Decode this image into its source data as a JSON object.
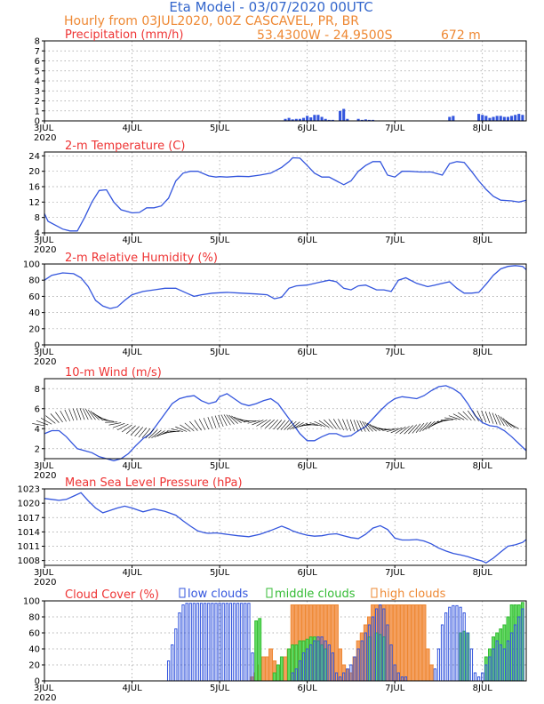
{
  "header": {
    "title": "Eta Model - 03/07/2020 00UTC",
    "subtitle": "Hourly from 03JUL2020, 00Z  CASCAVEL, PR, BR",
    "coords": "53.4300W - 24.9500S",
    "elevation": "672  m"
  },
  "colors": {
    "blue": "#3355dd",
    "red": "#ee3333",
    "orange": "#ee8833",
    "green": "#33bb33",
    "title_blue": "#3366cc",
    "high_fill": "#f4a060",
    "mid_fill": "#66dd66",
    "grid": "#999999"
  },
  "x_axis": {
    "ticks": [
      "3JUL",
      "4JUL",
      "5JUL",
      "6JUL",
      "7JUL",
      "8JUL"
    ],
    "year": "2020",
    "hours_total": 132
  },
  "chart_data": [
    {
      "type": "bar",
      "name": "precipitation",
      "title": "Precipitation (mm/h)",
      "yticks": [
        "0",
        "1",
        "2",
        "3",
        "4",
        "5",
        "6",
        "7",
        "8"
      ],
      "ylim": [
        0,
        8
      ],
      "x_hours": [
        66,
        67,
        68,
        69,
        70,
        71,
        72,
        73,
        74,
        75,
        76,
        77,
        78,
        79,
        81,
        82,
        83,
        86,
        87,
        88,
        89,
        90,
        111,
        112,
        119,
        120,
        121,
        122,
        123,
        124,
        125,
        126,
        127,
        128,
        129,
        130,
        131
      ],
      "values": [
        0.2,
        0.3,
        0.15,
        0.2,
        0.2,
        0.3,
        0.5,
        0.35,
        0.6,
        0.6,
        0.4,
        0.2,
        0.1,
        0.1,
        1.0,
        1.2,
        0.2,
        0.2,
        0.1,
        0.15,
        0.1,
        0.1,
        0.4,
        0.5,
        0.7,
        0.6,
        0.5,
        0.3,
        0.4,
        0.5,
        0.5,
        0.4,
        0.4,
        0.5,
        0.6,
        0.7,
        0.6
      ]
    },
    {
      "type": "line",
      "name": "temperature",
      "title": "2-m Temperature (C)",
      "yticks": [
        "4",
        "8",
        "12",
        "16",
        "20",
        "24"
      ],
      "ylim": [
        4,
        25
      ],
      "x": [
        0,
        1,
        3,
        5,
        7,
        9,
        11,
        13,
        15,
        17,
        19,
        21,
        23,
        24,
        26,
        28,
        30,
        32,
        34,
        36,
        38,
        40,
        42,
        45,
        47,
        48,
        50,
        53,
        56,
        59,
        62,
        65,
        67,
        68,
        70,
        72,
        74,
        76,
        78,
        80,
        82,
        84,
        86,
        88,
        90,
        92,
        94,
        96,
        98,
        100,
        103,
        106,
        109,
        111,
        113,
        115,
        117,
        119,
        121,
        123,
        125,
        128,
        130,
        132
      ],
      "y": [
        9,
        7,
        6,
        5,
        4.5,
        4.5,
        8,
        12,
        15,
        15.2,
        12,
        10,
        9.5,
        9.2,
        9.3,
        10.5,
        10.5,
        11,
        13,
        17.5,
        19.5,
        20,
        20,
        18.8,
        18.5,
        18.6,
        18.5,
        18.7,
        18.6,
        19,
        19.5,
        21,
        22.5,
        23.5,
        23.4,
        21.5,
        19.5,
        18.5,
        18.5,
        17.5,
        16.5,
        17.5,
        20,
        21.5,
        22.5,
        22.5,
        19,
        18.5,
        20,
        20,
        19.8,
        19.8,
        19,
        22,
        22.5,
        22.3,
        20,
        17.5,
        15.3,
        13.5,
        12.5,
        12.3,
        12,
        12.5
      ]
    },
    {
      "type": "line",
      "name": "humidity",
      "title": "2-m Relative Humidity (%)",
      "yticks": [
        "0",
        "20",
        "40",
        "60",
        "80",
        "100"
      ],
      "ylim": [
        0,
        100
      ],
      "x": [
        0,
        2,
        5,
        8,
        10,
        12,
        14,
        16,
        18,
        20,
        22,
        24,
        27,
        30,
        33,
        36,
        39,
        41,
        43,
        46,
        50,
        54,
        58,
        61,
        63,
        65,
        67,
        69,
        72,
        75,
        78,
        80,
        82,
        84,
        86,
        88,
        91,
        93,
        95,
        97,
        99,
        102,
        105,
        107,
        109,
        111,
        113,
        115,
        117,
        119,
        121,
        123,
        125,
        127,
        129,
        131,
        132
      ],
      "y": [
        80,
        86,
        89,
        88,
        83,
        72,
        55,
        48,
        45,
        47,
        55,
        62,
        66,
        68,
        70,
        70,
        64,
        60,
        62,
        64,
        65,
        64,
        63,
        62,
        57,
        59,
        70,
        73,
        74,
        77,
        80,
        78,
        70,
        68,
        73,
        74,
        68,
        68,
        66,
        80,
        83,
        76,
        72,
        74,
        76,
        78,
        70,
        64,
        64,
        65,
        75,
        86,
        94,
        97,
        98,
        97,
        93
      ]
    },
    {
      "type": "line",
      "name": "wind",
      "title": "10-m Wind (m/s)",
      "yticks": [
        "2",
        "4",
        "6",
        "8"
      ],
      "ylim": [
        1,
        9
      ],
      "x": [
        0,
        2,
        4,
        6,
        8,
        9,
        11,
        13,
        15,
        17,
        19,
        21,
        23,
        25,
        27,
        29,
        31,
        33,
        35,
        37,
        39,
        41,
        43,
        45,
        47,
        48,
        50,
        52,
        54,
        56,
        58,
        60,
        62,
        64,
        66,
        68,
        70,
        72,
        74,
        76,
        78,
        80,
        82,
        84,
        86,
        88,
        90,
        92,
        94,
        96,
        98,
        100,
        102,
        104,
        106,
        108,
        110,
        112,
        114,
        116,
        118,
        120,
        122,
        124,
        126,
        128,
        130,
        132
      ],
      "y": [
        3.5,
        3.8,
        3.8,
        3.2,
        2.4,
        2,
        1.8,
        1.6,
        1.2,
        1,
        0.8,
        1,
        1.5,
        2.3,
        3,
        3.5,
        4.5,
        5.5,
        6.5,
        7,
        7.2,
        7.3,
        6.8,
        6.5,
        6.7,
        7.2,
        7.5,
        7,
        6.5,
        6.3,
        6.5,
        6.8,
        7,
        6.5,
        5.5,
        4.5,
        3.5,
        2.8,
        2.8,
        3.2,
        3.5,
        3.5,
        3.2,
        3.3,
        3.8,
        4.2,
        5,
        5.8,
        6.5,
        7,
        7.2,
        7.1,
        7,
        7.3,
        7.8,
        8.2,
        8.3,
        8,
        7.5,
        6.5,
        5.3,
        4.6,
        4.3,
        4.2,
        3.8,
        3.2,
        2.5,
        1.8
      ]
    },
    {
      "type": "line",
      "name": "pressure",
      "title": "Mean Sea Level Pressure (hPa)",
      "yticks": [
        "1008",
        "1011",
        "1014",
        "1017",
        "1020",
        "1023"
      ],
      "ylim": [
        1007,
        1023
      ],
      "x": [
        0,
        2,
        4,
        6,
        8,
        10,
        12,
        14,
        16,
        18,
        20,
        22,
        24,
        27,
        30,
        33,
        36,
        38,
        40,
        42,
        44,
        45,
        47,
        48,
        50,
        53,
        56,
        59,
        62,
        65,
        67,
        68,
        70,
        72,
        74,
        76,
        78,
        80,
        82,
        84,
        86,
        88,
        90,
        92,
        94,
        96,
        98,
        100,
        102,
        104,
        106,
        108,
        110,
        112,
        114,
        116,
        118,
        120,
        121,
        123,
        125,
        127,
        129,
        131,
        132
      ],
      "y": [
        1021,
        1020.8,
        1020.6,
        1020.8,
        1021.5,
        1022.2,
        1020.5,
        1019,
        1018,
        1018.5,
        1019,
        1019.4,
        1019,
        1018.2,
        1018.8,
        1018.3,
        1017.5,
        1016.3,
        1015.2,
        1014.2,
        1013.8,
        1013.7,
        1013.8,
        1013.7,
        1013.5,
        1013.2,
        1013,
        1013.5,
        1014.3,
        1015.2,
        1014.6,
        1014.2,
        1013.7,
        1013.3,
        1013.1,
        1013.2,
        1013.5,
        1013.6,
        1013.2,
        1012.8,
        1012.6,
        1013.5,
        1014.8,
        1015.3,
        1014.5,
        1012.7,
        1012.3,
        1012.3,
        1012.4,
        1012.1,
        1011.5,
        1010.6,
        1010,
        1009.5,
        1009.2,
        1008.8,
        1008.3,
        1007.9,
        1007.5,
        1008.5,
        1009.8,
        1011,
        1011.3,
        1011.8,
        1012.4
      ]
    },
    {
      "type": "bar",
      "name": "cloud_cover",
      "title": "Cloud Cover (%)",
      "legend": [
        "low clouds",
        "middle clouds",
        "high clouds"
      ],
      "yticks": [
        "0",
        "20",
        "40",
        "60",
        "80",
        "100"
      ],
      "ylim": [
        0,
        100
      ],
      "series": [
        {
          "name": "high clouds",
          "x_hours": [
            57,
            58,
            59,
            60,
            61,
            62,
            63,
            64,
            65,
            66,
            67,
            68,
            69,
            70,
            71,
            72,
            73,
            74,
            75,
            76,
            77,
            78,
            79,
            80,
            81,
            82,
            83,
            84,
            85,
            86,
            87,
            88,
            89,
            90,
            91,
            92,
            93,
            94,
            95,
            96,
            97,
            98,
            99,
            100,
            101,
            102,
            103,
            104,
            105,
            106
          ],
          "values": [
            5,
            10,
            20,
            30,
            30,
            40,
            25,
            15,
            20,
            30,
            40,
            95,
            95,
            95,
            95,
            95,
            95,
            95,
            95,
            95,
            95,
            95,
            95,
            95,
            40,
            20,
            15,
            10,
            30,
            50,
            60,
            70,
            80,
            95,
            95,
            95,
            95,
            95,
            95,
            95,
            95,
            95,
            95,
            95,
            95,
            95,
            95,
            95,
            40,
            20
          ]
        },
        {
          "name": "middle clouds",
          "x_hours": [
            58,
            59,
            63,
            64,
            65,
            67,
            68,
            69,
            70,
            71,
            72,
            73,
            74,
            75,
            76,
            77,
            89,
            91,
            92,
            93,
            114,
            115,
            116,
            121,
            122,
            123,
            124,
            125,
            126,
            127,
            128,
            129,
            130,
            131
          ],
          "values": [
            75,
            78,
            10,
            20,
            30,
            40,
            45,
            45,
            50,
            50,
            52,
            55,
            55,
            50,
            45,
            40,
            55,
            60,
            58,
            55,
            60,
            62,
            60,
            30,
            40,
            55,
            60,
            65,
            70,
            80,
            95,
            95,
            95,
            98
          ]
        },
        {
          "name": "low clouds",
          "x_hours": [
            34,
            35,
            36,
            37,
            38,
            39,
            40,
            41,
            42,
            43,
            44,
            45,
            46,
            47,
            48,
            49,
            50,
            51,
            52,
            53,
            54,
            55,
            56,
            57,
            68,
            69,
            70,
            71,
            72,
            73,
            74,
            75,
            76,
            77,
            78,
            79,
            80,
            81,
            82,
            83,
            84,
            85,
            86,
            87,
            88,
            89,
            90,
            91,
            92,
            93,
            94,
            95,
            96,
            97,
            98,
            99,
            107,
            108,
            109,
            110,
            111,
            112,
            113,
            114,
            115,
            116,
            117,
            118,
            119,
            120,
            121,
            122,
            123,
            124,
            125,
            126,
            127,
            128,
            129,
            130,
            131
          ],
          "values": [
            25,
            45,
            65,
            85,
            95,
            97,
            97,
            97,
            97,
            97,
            97,
            97,
            97,
            97,
            97,
            97,
            97,
            97,
            97,
            97,
            97,
            97,
            97,
            35,
            10,
            15,
            25,
            35,
            40,
            45,
            50,
            55,
            55,
            50,
            45,
            35,
            10,
            5,
            10,
            15,
            20,
            30,
            40,
            50,
            60,
            70,
            80,
            90,
            95,
            90,
            70,
            45,
            20,
            10,
            5,
            5,
            15,
            40,
            70,
            85,
            92,
            94,
            94,
            92,
            85,
            60,
            40,
            10,
            5,
            10,
            20,
            30,
            40,
            50,
            45,
            40,
            50,
            60,
            70,
            80,
            90
          ]
        }
      ]
    }
  ]
}
